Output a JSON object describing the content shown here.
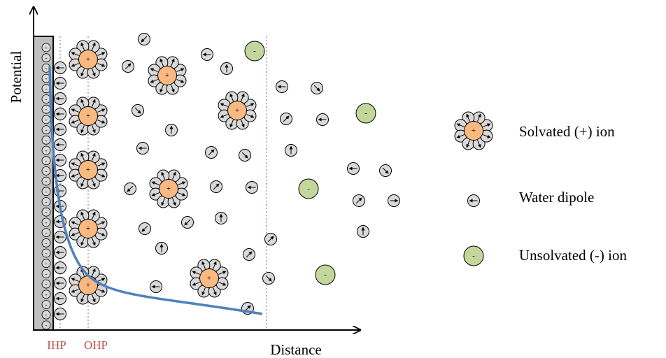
{
  "axes": {
    "y_label": "Potential",
    "x_label": "Distance"
  },
  "planes": {
    "inner": "IHP",
    "outer": "OHP"
  },
  "signs": {
    "plus": "+",
    "minus": "-"
  },
  "legend": {
    "items": [
      "Solvated (+) ion",
      "Water dipole",
      "Unsolvated (-) ion"
    ]
  }
}
